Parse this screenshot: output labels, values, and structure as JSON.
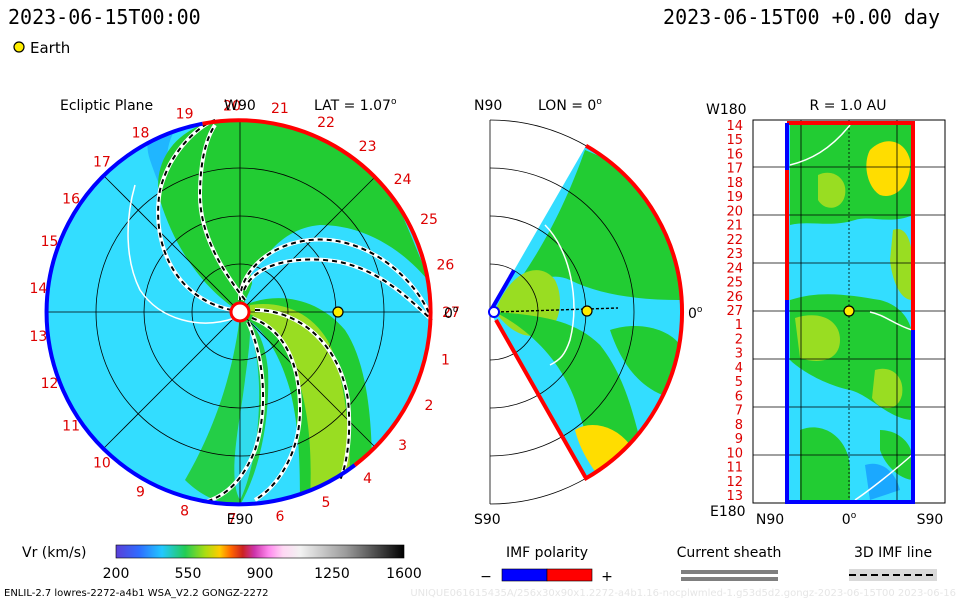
{
  "header": {
    "left_timestamp": "2023-06-15T00:00",
    "right_timestamp": "2023-06-15T00 +0.00 day",
    "earth_legend": "Earth"
  },
  "colors": {
    "earth": "#ffee00",
    "imf_negative": "#0000ff",
    "imf_positive": "#ff0000",
    "sheath": "#7f7f7f",
    "cyan_bg": "#33ddff",
    "green": "#22cc33",
    "yellow_green": "#99dd22"
  },
  "ecliptic": {
    "title": "Ecliptic Plane",
    "top_label": "W90",
    "bottom_label": "E90",
    "right_label": "0",
    "lat_label": "LAT = 1.07",
    "carrington_labels": [
      "1",
      "2",
      "3",
      "4",
      "5",
      "6",
      "7",
      "8",
      "9",
      "10",
      "11",
      "12",
      "13",
      "14",
      "15",
      "16",
      "17",
      "18",
      "19",
      "20",
      "21",
      "22",
      "23",
      "24",
      "25",
      "26",
      "27"
    ]
  },
  "meridional": {
    "top_label": "N90",
    "bottom_label": "S90",
    "right_label": "0",
    "lon_label": "LON = 0"
  },
  "map": {
    "title": "R = 1.0 AU",
    "top_left_label": "W180",
    "bottom_left_label": "E180",
    "x_labels": [
      "N90",
      "0",
      "S90"
    ],
    "y_labels": [
      "14",
      "15",
      "16",
      "17",
      "18",
      "19",
      "20",
      "21",
      "22",
      "23",
      "24",
      "25",
      "26",
      "27",
      "1",
      "2",
      "3",
      "4",
      "5",
      "6",
      "7",
      "8",
      "9",
      "10",
      "11",
      "12",
      "13"
    ]
  },
  "legends": {
    "vr_label": "Vr (km/s)",
    "vr_ticks": [
      "200",
      "550",
      "900",
      "1250",
      "1600"
    ],
    "imf_label": "IMF polarity",
    "imf_minus": "−",
    "imf_plus": "+",
    "sheath_label": "Current sheath",
    "imf3d_label": "3D IMF line"
  },
  "footer": {
    "left_text": "ENLIL-2.7 lowres-2272-a4b1 WSA_V2.2 GONGZ-2272",
    "right_text": "UNIQUE061615435A/256x30x90x1.2272-a4b1.16-nocplwmled-1.g53d5d2.gongz-2023-06-15T00  2023-06-16"
  },
  "chart_data": {
    "type": "heatmap",
    "quantity": "Vr (km/s)",
    "colorbar_range": [
      200,
      1600
    ],
    "colorbar_ticks": [
      200,
      550,
      900,
      1250,
      1600
    ],
    "earth_position": {
      "radius_au": 1.0,
      "longitude_deg": 0,
      "latitude_deg": 1.07
    },
    "panels": [
      "Ecliptic Plane",
      "LON = 0",
      "R = 1.0 AU"
    ],
    "imf_polarity_ticks": [
      "−",
      "+"
    ]
  }
}
